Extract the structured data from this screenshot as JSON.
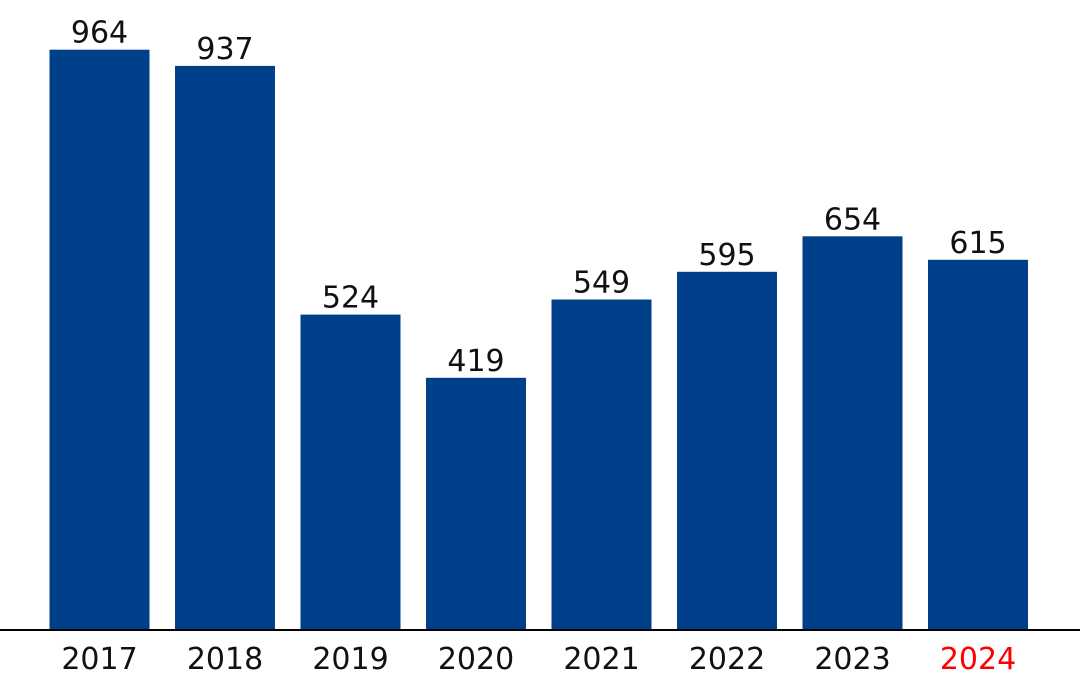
{
  "chart_data": {
    "type": "bar",
    "categories": [
      "2017",
      "2018",
      "2019",
      "2020",
      "2021",
      "2022",
      "2023",
      "2024"
    ],
    "values": [
      964,
      937,
      524,
      419,
      549,
      595,
      654,
      615
    ],
    "data_labels": [
      "964",
      "937",
      "524",
      "419",
      "549",
      "595",
      "654",
      "615"
    ],
    "title": "",
    "xlabel": "",
    "ylabel": "",
    "ylim": [
      0,
      1000
    ],
    "grid": false,
    "legend": "none",
    "colors": {
      "bar": "#003f8a",
      "axis": "#000000",
      "tick_label": "#111111",
      "tick_label_highlight": "#ff0000"
    },
    "highlight_category": "2024"
  }
}
